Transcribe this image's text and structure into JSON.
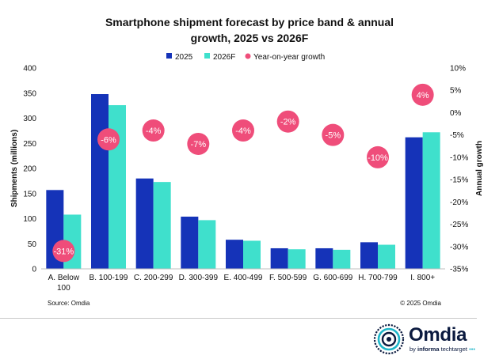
{
  "chart_data": {
    "type": "bar",
    "title_lines": [
      "Smartphone shipment forecast by price band & annual",
      "growth, 2025 vs 2026F"
    ],
    "categories": [
      [
        "A. Below",
        "100"
      ],
      [
        "B. 100-199"
      ],
      [
        "C. 200-299"
      ],
      [
        "D. 300-399"
      ],
      [
        "E. 400-499"
      ],
      [
        "F. 500-599"
      ],
      [
        "G. 600-699"
      ],
      [
        "H. 700-799"
      ],
      [
        "I. 800+"
      ]
    ],
    "series": [
      {
        "name": "2025",
        "color": "#1533b8",
        "values": [
          157,
          348,
          180,
          104,
          58,
          41,
          41,
          53,
          262
        ]
      },
      {
        "name": "2026F",
        "color": "#3fe0cc",
        "values": [
          108,
          326,
          173,
          97,
          56,
          39,
          38,
          48,
          272
        ]
      }
    ],
    "growth": {
      "name": "Year-on-year growth",
      "color": "#ef4d7a",
      "values": [
        -31,
        -6,
        -4,
        -7,
        -4,
        -2,
        -5,
        -10,
        4
      ],
      "labels": [
        "-31%",
        "-6%",
        "-4%",
        "-7%",
        "-4%",
        "-2%",
        "-5%",
        "-10%",
        "4%"
      ]
    },
    "ylabel": "Shipments (millions)",
    "y2label": "Annual growth",
    "ylim": [
      0,
      400
    ],
    "yticks": [
      0,
      50,
      100,
      150,
      200,
      250,
      300,
      350,
      400
    ],
    "ytick_labels": [
      "0",
      "50",
      "100",
      "150",
      "200",
      "250",
      "300",
      "350",
      "400"
    ],
    "y2lim": [
      -35,
      10
    ],
    "y2ticks": [
      10,
      5,
      0,
      -5,
      -10,
      -15,
      -20,
      -25,
      -30,
      -35
    ],
    "y2tick_labels": [
      "10%",
      "5%",
      "0%",
      "-5%",
      "-10%",
      "-15%",
      "-20%",
      "-25%",
      "-30%",
      "-35%"
    ],
    "legend_position": "top"
  },
  "source": "Source: Omdia",
  "copyright": "© 2025 Omdia",
  "logo": {
    "brand": "Omdia",
    "by": "by",
    "company": "informa",
    "suffix": "techtarget"
  }
}
